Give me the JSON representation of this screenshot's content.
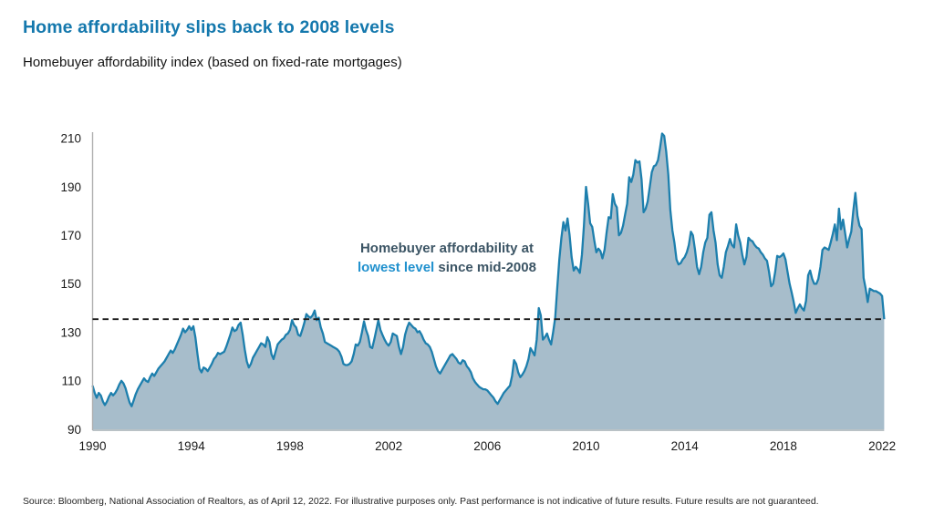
{
  "header": {
    "title": "Home affordability slips back to 2008 levels",
    "subtitle": "Homebuyer affordability index (based on fixed-rate mortgages)"
  },
  "annotation": {
    "line1": "Homebuyer affordability at",
    "highlight": "lowest level",
    "rest": " since mid-2008"
  },
  "footer": {
    "source": "Source: Bloomberg, National Association of Realtors, as of April 12, 2022. For illustrative purposes only. Past performance is not indicative of future results. Future results are not guaranteed."
  },
  "colors": {
    "title_blue": "#1478ad",
    "line_blue": "#1d7fad",
    "area_fill": "#a7bdcb",
    "annotation_dark": "#3c5565",
    "annotation_blue": "#2191ce",
    "dashed_line": "#1a1a1a",
    "axis_gray": "#b0b0b0",
    "baseline_gray": "#a3adb4"
  },
  "chart_data": {
    "type": "area",
    "title": "Homebuyer affordability index (based on fixed-rate mortgages)",
    "frequency": "monthly",
    "x_start": "1990-01",
    "x_end": "2022-02",
    "xlim": [
      1990,
      2022.2
    ],
    "ylim": [
      90,
      215
    ],
    "x_tick_years": [
      1990,
      1994,
      1998,
      2002,
      2006,
      2010,
      2014,
      2018,
      2022
    ],
    "y_ticks": [
      90,
      110,
      130,
      150,
      170,
      190,
      210
    ],
    "grid": false,
    "legend": "none",
    "reference_line": {
      "value": 135.4,
      "style": "dashed",
      "meaning": "lowest level since mid-2008"
    },
    "values": [
      108,
      105,
      103,
      105,
      104,
      101.5,
      100,
      101.5,
      103.5,
      105,
      104,
      105,
      106.5,
      108.5,
      110,
      109,
      107,
      104,
      101,
      99.5,
      102,
      104.5,
      106.5,
      108,
      109.5,
      111,
      110,
      109.5,
      111.5,
      113,
      112,
      113.5,
      115,
      116,
      117,
      118,
      119.5,
      121,
      122.5,
      121.5,
      123,
      125,
      127,
      129,
      131.5,
      130,
      131,
      132.5,
      131,
      132.5,
      128,
      121,
      115,
      113.5,
      115.5,
      115,
      114,
      115.5,
      117,
      119,
      120,
      121.5,
      121,
      121.5,
      122,
      124,
      126.5,
      129,
      132,
      130.5,
      131,
      133,
      134,
      129,
      123,
      118,
      115.5,
      117,
      119.5,
      121,
      122.5,
      124,
      125.5,
      125,
      124,
      128,
      126,
      121,
      119,
      122,
      125,
      126,
      127,
      127.5,
      129,
      129.5,
      131,
      135,
      133,
      132,
      129,
      128.5,
      131,
      134,
      137.5,
      136.5,
      136,
      137,
      139,
      135,
      136,
      132,
      129.5,
      126,
      125.5,
      125,
      124.5,
      124,
      123.5,
      123,
      122,
      120,
      117,
      116.5,
      116.5,
      117,
      118,
      121,
      125,
      124.5,
      126,
      130,
      134.5,
      131,
      128.5,
      124,
      123.5,
      127,
      131,
      135,
      131,
      129,
      127,
      125.5,
      124.5,
      126,
      129.5,
      129,
      128.5,
      124,
      121,
      124,
      129,
      132,
      134,
      133,
      132,
      131.5,
      130,
      130.5,
      129,
      127,
      125.5,
      125,
      124,
      122,
      119,
      116,
      114,
      113,
      114.5,
      116,
      117.5,
      119,
      120.5,
      121,
      120,
      119,
      117.5,
      117,
      118.5,
      118,
      116,
      115,
      113.5,
      111,
      109.5,
      108.5,
      107.5,
      107,
      106.5,
      106.5,
      106,
      105,
      104,
      103,
      101.5,
      100.5,
      102,
      103.5,
      105,
      106,
      107,
      108,
      112,
      118.5,
      117,
      113.5,
      111.5,
      112.5,
      114,
      116,
      119,
      123.5,
      122,
      120.5,
      127,
      140,
      137,
      127,
      128,
      129.5,
      127,
      125,
      130,
      136,
      148,
      160,
      169,
      175.5,
      172,
      177,
      170,
      161,
      155.5,
      157,
      156,
      154.5,
      162,
      174,
      190,
      183,
      175,
      173.5,
      168,
      163,
      164.5,
      163.5,
      160.5,
      164,
      171,
      177.5,
      177,
      187,
      183,
      181.5,
      170,
      171,
      174,
      178.5,
      183,
      194,
      192,
      195,
      201,
      200,
      200.5,
      193,
      179.5,
      181,
      184,
      190,
      196,
      198.5,
      199,
      201,
      206,
      212,
      211,
      204.5,
      195,
      180.5,
      172,
      167,
      160,
      158,
      158.5,
      160,
      161,
      163,
      166,
      171.5,
      170,
      164,
      157,
      154,
      157,
      163,
      167,
      169,
      178.5,
      179.5,
      172,
      167,
      158,
      153.5,
      152.5,
      157,
      163,
      165.5,
      168.5,
      166,
      165,
      174.5,
      170,
      167,
      162,
      158,
      161,
      169,
      168,
      167.5,
      166,
      165,
      164.5,
      163,
      162,
      160.5,
      159.5,
      155,
      149,
      150,
      155,
      161.5,
      161,
      161.5,
      162.5,
      160,
      155,
      150,
      146.5,
      142.5,
      138,
      140,
      141.5,
      140,
      139,
      143,
      153.5,
      155.5,
      152,
      150,
      150,
      152,
      157,
      164,
      165,
      164.5,
      164,
      167,
      170.5,
      174.5,
      168,
      181,
      172.5,
      176.5,
      171,
      165,
      168.5,
      171.5,
      180,
      187.5,
      178,
      174,
      172.5,
      152.5,
      148,
      142.5,
      148,
      147.5,
      147,
      147,
      146.5,
      146,
      145,
      135.4
    ]
  }
}
